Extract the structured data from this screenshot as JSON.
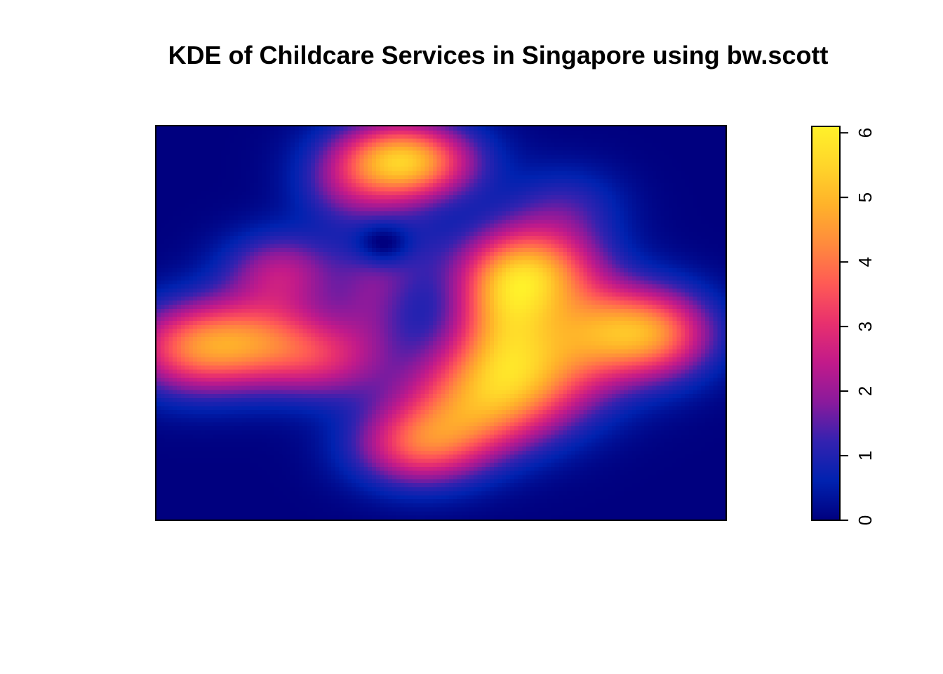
{
  "chart_data": {
    "type": "heatmap",
    "title": "KDE of Childcare Services in Singapore using bw.scott",
    "xlabel": "",
    "ylabel": "",
    "grid": false,
    "axes_ticks_shown": false,
    "legend": {
      "placement": "right",
      "orientation": "vertical",
      "range": [
        0,
        6.1
      ],
      "ticks": [
        "0",
        "1",
        "2",
        "3",
        "4",
        "5",
        "6"
      ],
      "tick_values": [
        0,
        1,
        2,
        3,
        4,
        5,
        6
      ],
      "palette": [
        "#00007F",
        "#0022B0",
        "#3322B0",
        "#8A1A9C",
        "#C21A8A",
        "#E8306E",
        "#FF5A55",
        "#FF8A3D",
        "#FFB22A",
        "#FFD52A",
        "#FFF12A"
      ]
    },
    "density_hotspots": [
      {
        "name": "north",
        "x": 0.43,
        "y": 0.9,
        "peak": 5.3
      },
      {
        "name": "central-east",
        "x": 0.66,
        "y": 0.62,
        "peak": 6.0
      },
      {
        "name": "east",
        "x": 0.82,
        "y": 0.47,
        "peak": 3.9
      },
      {
        "name": "south-central",
        "x": 0.63,
        "y": 0.33,
        "peak": 5.2
      },
      {
        "name": "west",
        "x": 0.18,
        "y": 0.45,
        "peak": 4.2
      },
      {
        "name": "south",
        "x": 0.46,
        "y": 0.2,
        "peak": 3.8
      },
      {
        "name": "north-west",
        "x": 0.22,
        "y": 0.66,
        "peak": 3.3
      }
    ],
    "density_range": [
      0,
      6.1
    ]
  }
}
